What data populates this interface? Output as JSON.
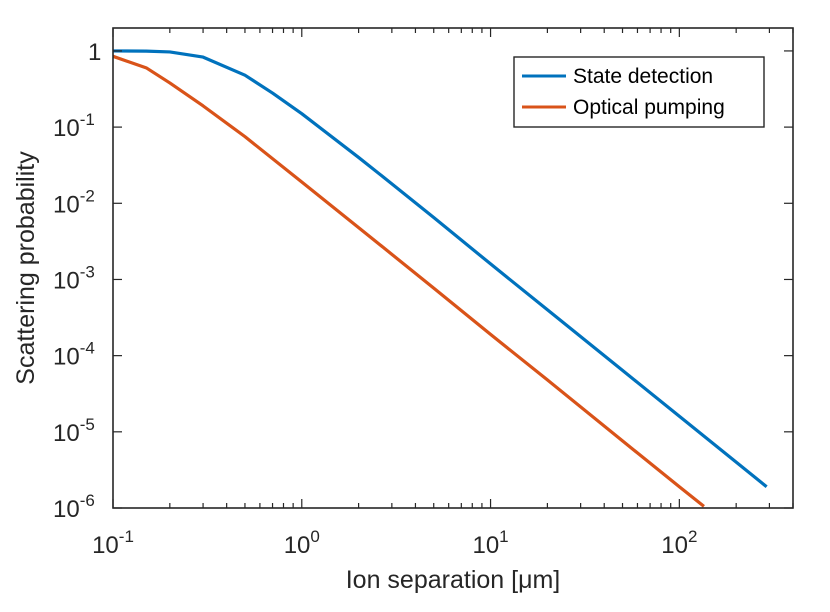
{
  "chart_data": {
    "type": "line",
    "xlabel": "Ion separation [μm]",
    "ylabel": "Scattering probability",
    "x_scale": "log",
    "y_scale": "log",
    "xlim": [
      0.1,
      400
    ],
    "ylim": [
      1e-06,
      2
    ],
    "grid": false,
    "legend_position": "top-right",
    "x_ticks": [
      {
        "value": 0.1,
        "base": "10",
        "exp": "-1"
      },
      {
        "value": 1,
        "base": "10",
        "exp": "0"
      },
      {
        "value": 10,
        "base": "10",
        "exp": "1"
      },
      {
        "value": 100,
        "base": "10",
        "exp": "2"
      }
    ],
    "y_ticks": [
      {
        "value": 1e-06,
        "base": "10",
        "exp": "-6"
      },
      {
        "value": 1e-05,
        "base": "10",
        "exp": "-5"
      },
      {
        "value": 0.0001,
        "base": "10",
        "exp": "-4"
      },
      {
        "value": 0.001,
        "base": "10",
        "exp": "-3"
      },
      {
        "value": 0.01,
        "base": "10",
        "exp": "-2"
      },
      {
        "value": 0.1,
        "base": "10",
        "exp": "-1"
      },
      {
        "value": 1,
        "base": "1",
        "exp": ""
      }
    ],
    "series": [
      {
        "name": "State detection",
        "color": "#0072BD",
        "x": [
          0.1,
          0.15,
          0.2,
          0.3,
          0.5,
          0.7,
          1,
          2,
          3,
          5,
          10,
          20,
          50,
          100,
          200,
          290
        ],
        "y": [
          1.0,
          0.995,
          0.97,
          0.83,
          0.48,
          0.28,
          0.15,
          0.04,
          0.018,
          0.0065,
          0.0016,
          0.0004,
          6.4e-05,
          1.6e-05,
          4e-06,
          1.9e-06
        ]
      },
      {
        "name": "Optical pumping",
        "color": "#D95319",
        "x": [
          0.1,
          0.15,
          0.2,
          0.3,
          0.5,
          1,
          2,
          5,
          10,
          20,
          50,
          100,
          135
        ],
        "y": [
          0.85,
          0.6,
          0.38,
          0.19,
          0.075,
          0.019,
          0.0048,
          0.00077,
          0.00019,
          4.8e-05,
          7.6e-06,
          1.9e-06,
          1.05e-06
        ]
      }
    ]
  }
}
